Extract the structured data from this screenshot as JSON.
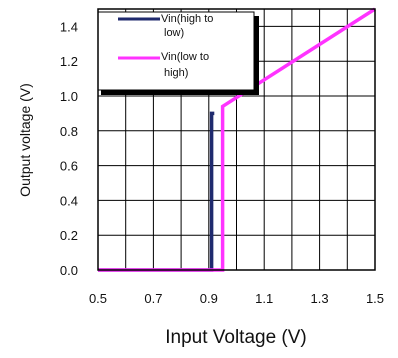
{
  "chart_data": {
    "type": "line",
    "xlabel": "Input Voltage (V)",
    "ylabel": "Output voltage (V)",
    "xlim": [
      0.5,
      1.5
    ],
    "ylim": [
      0,
      1.5
    ],
    "x_ticks": [
      "0.5",
      "0.7",
      "0.9",
      "1.1",
      "1.3",
      "1.5"
    ],
    "y_ticks": [
      "0.0",
      "0.2",
      "0.4",
      "0.6",
      "0.8",
      "1.0",
      "1.2",
      "1.4"
    ],
    "grid": true,
    "legend_position": "top-left",
    "series": [
      {
        "name": "Vin(high to low)",
        "color": "#1f2a6e",
        "x": [
          0.5,
          0.91,
          0.91,
          0.92
        ],
        "y": [
          0.0,
          0.0,
          0.9,
          0.9
        ]
      },
      {
        "name": "Vin(low to high)",
        "color": "#ff33ff",
        "x": [
          0.5,
          0.95,
          0.95,
          1.5
        ],
        "y": [
          0.0,
          0.0,
          0.94,
          1.5
        ]
      }
    ]
  }
}
